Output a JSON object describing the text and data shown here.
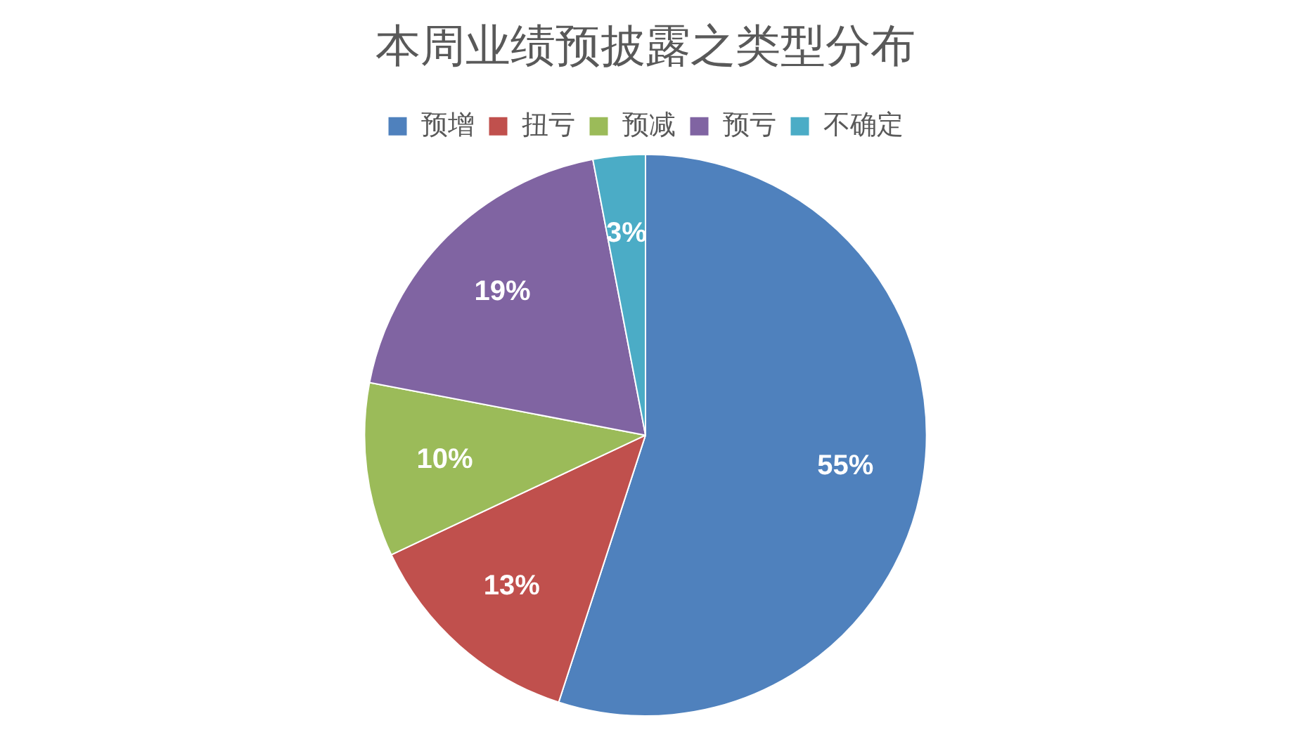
{
  "chart_data": {
    "type": "pie",
    "title": "本周业绩预披露之类型分布",
    "categories": [
      "预增",
      "扭亏",
      "预减",
      "预亏",
      "不确定"
    ],
    "values": [
      55,
      13,
      10,
      19,
      3
    ],
    "colors": [
      "#4f81bd",
      "#c0504d",
      "#9bbb59",
      "#8064a2",
      "#4bacc6"
    ],
    "value_labels": [
      "55%",
      "13%",
      "10%",
      "19%",
      "3%"
    ],
    "legend": "top"
  }
}
